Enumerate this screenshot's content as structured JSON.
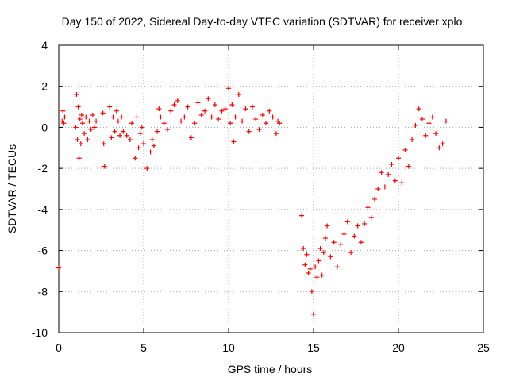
{
  "chart_data": {
    "type": "scatter",
    "title": "Day 150 of 2022, Sidereal Day-to-day VTEC variation (SDTVAR) for receiver xplo",
    "xlabel": "GPS time / hours",
    "ylabel": "SDTVAR / TECUs",
    "xlim": [
      0,
      25
    ],
    "ylim": [
      -10,
      4
    ],
    "x_ticks": [
      0,
      5,
      10,
      15,
      20,
      25
    ],
    "y_ticks": [
      -10,
      -8,
      -6,
      -4,
      -2,
      0,
      2,
      4
    ],
    "grid": true,
    "marker": "+",
    "marker_color": "#ff0000",
    "series": [
      {
        "name": "SDTVAR",
        "x": [
          0.0,
          0.2,
          0.25,
          0.3,
          0.35,
          1.0,
          1.05,
          1.1,
          1.15,
          1.2,
          1.25,
          1.3,
          1.35,
          1.4,
          1.5,
          1.6,
          1.7,
          1.8,
          1.9,
          2.0,
          2.1,
          2.2,
          2.6,
          2.65,
          2.7,
          3.0,
          3.1,
          3.2,
          3.3,
          3.4,
          3.5,
          3.6,
          3.7,
          3.8,
          4.0,
          4.2,
          4.3,
          4.5,
          4.6,
          4.7,
          4.8,
          4.9,
          5.0,
          5.2,
          5.4,
          5.5,
          5.6,
          5.8,
          5.9,
          6.0,
          6.2,
          6.4,
          6.6,
          6.8,
          7.0,
          7.2,
          7.4,
          7.6,
          7.8,
          8.0,
          8.2,
          8.4,
          8.6,
          8.8,
          9.0,
          9.2,
          9.4,
          9.6,
          9.8,
          10.0,
          10.1,
          10.2,
          10.3,
          10.4,
          10.6,
          10.8,
          11.0,
          11.2,
          11.4,
          11.6,
          11.8,
          12.0,
          12.2,
          12.4,
          12.6,
          12.8,
          12.9,
          13.0,
          14.3,
          14.4,
          14.5,
          14.6,
          14.7,
          14.8,
          14.9,
          15.0,
          15.1,
          15.2,
          15.3,
          15.4,
          15.5,
          15.6,
          15.7,
          15.8,
          16.0,
          16.2,
          16.4,
          16.6,
          16.8,
          17.0,
          17.2,
          17.4,
          17.6,
          17.8,
          18.0,
          18.2,
          18.4,
          18.6,
          18.8,
          19.0,
          19.2,
          19.4,
          19.6,
          19.8,
          20.0,
          20.2,
          20.4,
          20.6,
          20.8,
          21.0,
          21.2,
          21.4,
          21.6,
          21.8,
          22.0,
          22.2,
          22.4,
          22.6,
          22.8
        ],
        "y": [
          -6.85,
          0.3,
          0.8,
          0.2,
          0.5,
          0.0,
          1.6,
          -0.6,
          1.0,
          -1.5,
          0.4,
          -0.8,
          0.6,
          0.2,
          -0.3,
          0.5,
          -0.6,
          0.3,
          -0.1,
          0.6,
          0.0,
          0.3,
          0.7,
          -0.8,
          -1.9,
          1.0,
          -0.5,
          0.5,
          -0.2,
          0.8,
          0.3,
          -0.4,
          0.5,
          -0.2,
          -0.4,
          -0.6,
          0.2,
          -1.5,
          0.5,
          -1.0,
          -0.3,
          0.0,
          -0.8,
          -2.0,
          -1.2,
          -0.6,
          -0.9,
          -0.2,
          0.9,
          0.5,
          0.2,
          -0.1,
          0.8,
          1.1,
          1.3,
          0.3,
          0.5,
          1.0,
          -0.5,
          0.2,
          1.2,
          0.6,
          0.8,
          1.4,
          0.5,
          1.1,
          0.4,
          0.8,
          0.9,
          1.9,
          0.2,
          1.1,
          -0.7,
          0.5,
          1.6,
          0.3,
          0.9,
          -0.2,
          1.0,
          0.4,
          -0.1,
          0.6,
          0.2,
          0.8,
          0.5,
          -0.3,
          0.3,
          0.2,
          -4.3,
          -5.9,
          -6.7,
          -6.2,
          -7.1,
          -6.9,
          -8.0,
          -9.1,
          -6.8,
          -7.3,
          -6.5,
          -5.9,
          -7.2,
          -6.1,
          -5.4,
          -4.8,
          -6.3,
          -5.6,
          -6.8,
          -5.7,
          -5.2,
          -4.6,
          -6.1,
          -5.3,
          -4.8,
          -5.6,
          -4.7,
          -3.9,
          -4.4,
          -3.5,
          -3.0,
          -2.2,
          -2.9,
          -2.3,
          -1.8,
          -2.6,
          -1.5,
          -2.7,
          -1.1,
          -1.9,
          -0.6,
          0.1,
          0.9,
          0.4,
          -0.4,
          0.2,
          0.5,
          -0.3,
          -1.0,
          -0.8,
          0.3
        ]
      }
    ]
  }
}
